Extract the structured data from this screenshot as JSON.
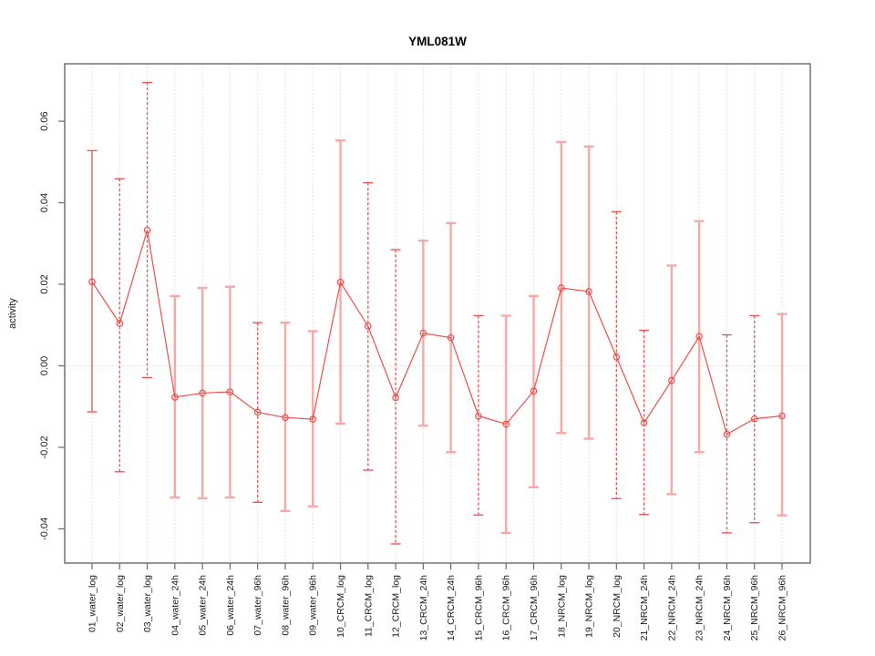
{
  "figure": {
    "title": "YML081W",
    "ylabel": "activity"
  },
  "chart_data": {
    "type": "line",
    "title": "YML081W",
    "xlabel": "",
    "ylabel": "activity",
    "ylim": [
      -0.0484,
      0.0741
    ],
    "yticks": [
      -0.04,
      -0.02,
      0.0,
      0.02,
      0.04,
      0.06
    ],
    "ytick_labels": [
      "-0.04",
      "-0.02",
      "0.00",
      "0.02",
      "0.04",
      "0.06"
    ],
    "grid": "vertical dotted gridline at each category; dotted horizontal line at y=0",
    "legend": "none",
    "error_bars": true,
    "marker": "open-circle",
    "colors": {
      "line_red": "#ee4f4a",
      "bar_pink": "#f6a9a5",
      "grid_gray": "#d9d9d9",
      "zero_line_gray": "#dcdcdc",
      "axis_gray": "#696969",
      "tick_label_color": "#1a1a1a",
      "title_color": "#000000"
    },
    "categories": [
      "01_water_log",
      "02_water_log",
      "03_water_log",
      "04_water_24h",
      "05_water_24h",
      "06_water_24h",
      "07_water_96h",
      "08_water_96h",
      "09_water_96h",
      "10_CRCM_log",
      "11_CRCM_log",
      "12_CRCM_log",
      "13_CRCM_24h",
      "14_CRCM_24h",
      "15_CRCM_96h",
      "16_CRCM_96h",
      "17_CRCM_96h",
      "18_NRCM_log",
      "19_NRCM_log",
      "20_NRCM_log",
      "21_NRCM_24h",
      "22_NRCM_24h",
      "23_NRCM_24h",
      "24_NRCM_96h",
      "25_NRCM_96h",
      "26_NRCM_96h"
    ],
    "series": [
      {
        "name": "activity",
        "values": [
          0.0206,
          0.0104,
          0.0333,
          -0.0077,
          -0.0067,
          -0.0064,
          -0.0114,
          -0.0127,
          -0.0131,
          0.0205,
          0.0097,
          -0.0078,
          0.008,
          0.0069,
          -0.0123,
          -0.0143,
          -0.0062,
          0.0191,
          0.0182,
          0.0022,
          -0.014,
          -0.0036,
          0.0072,
          -0.0168,
          -0.013,
          -0.0123
        ],
        "err_high": [
          0.0528,
          0.0459,
          0.0695,
          0.0171,
          0.0191,
          0.0194,
          0.0106,
          0.0106,
          0.0085,
          0.0553,
          0.0449,
          0.0285,
          0.0307,
          0.035,
          0.0123,
          0.0123,
          0.0171,
          0.0549,
          0.0538,
          0.0378,
          0.0087,
          0.0246,
          0.0355,
          0.0076,
          0.0123,
          0.0127
        ],
        "err_low": [
          -0.0113,
          -0.026,
          -0.0029,
          -0.0323,
          -0.0325,
          -0.0323,
          -0.0335,
          -0.0356,
          -0.0345,
          -0.0142,
          -0.0256,
          -0.0437,
          -0.0147,
          -0.0212,
          -0.0366,
          -0.041,
          -0.0298,
          -0.0165,
          -0.0179,
          -0.0326,
          -0.0365,
          -0.0315,
          -0.0212,
          -0.041,
          -0.0385,
          -0.0367
        ],
        "bar_styles": [
          "solid-red",
          "dashed",
          "dashed",
          "solid-pink",
          "solid-pink",
          "solid-pink",
          "dashed",
          "solid-pink",
          "solid-pink",
          "solid-pink",
          "dashed",
          "dashed",
          "solid-pink",
          "solid-pink",
          "dashed",
          "solid-pink",
          "solid-pink",
          "solid-pink",
          "solid-pink",
          "dashed",
          "dashed",
          "solid-pink",
          "solid-pink",
          "dashed",
          "dashed",
          "solid-pink"
        ]
      }
    ]
  }
}
